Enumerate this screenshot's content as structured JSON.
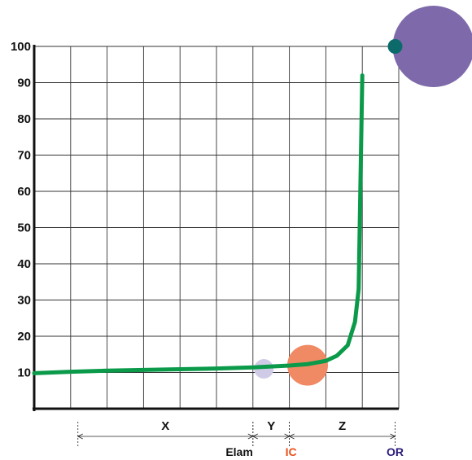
{
  "chart_data": {
    "type": "line",
    "title": "",
    "xlabel": "",
    "ylabel": "",
    "ylim": [
      0,
      100
    ],
    "yticks": [
      10,
      20,
      30,
      40,
      50,
      60,
      70,
      80,
      90,
      100
    ],
    "grid": true,
    "series": [
      {
        "color": "#0a9a4a",
        "x": [
          0,
          1,
          2,
          3,
          4,
          5,
          6,
          7,
          7.5,
          8,
          8.3,
          8.6,
          8.8,
          8.9,
          9.0
        ],
        "y": [
          9.8,
          10.2,
          10.5,
          10.7,
          10.9,
          11.1,
          11.4,
          11.9,
          12.3,
          13.2,
          14.6,
          17.5,
          24.0,
          33.0,
          92.0
        ]
      }
    ],
    "circles": [
      {
        "name": "small-lavender",
        "x": 6.3,
        "y": 11.0,
        "color": "#cfcbe6"
      },
      {
        "name": "salmon",
        "x": 7.5,
        "y": 12.0,
        "color": "#f08a64"
      },
      {
        "name": "teal-dot",
        "x": 9.9,
        "y": 100.0,
        "color": "#0d6a6a"
      },
      {
        "name": "purple",
        "x": 10.95,
        "y": 100.0,
        "color": "#7e6aaa"
      }
    ],
    "segments": [
      {
        "label": "X",
        "from": 1.2,
        "to": 6.0
      },
      {
        "label": "Y",
        "from": 6.0,
        "to": 7.0
      },
      {
        "label": "Z",
        "from": 7.0,
        "to": 9.9
      }
    ],
    "markers": [
      {
        "label": "Elam",
        "x": 6.0,
        "color": "#111111"
      },
      {
        "label": "IC",
        "x": 7.0,
        "color": "#e8501a"
      },
      {
        "label": "OR",
        "x": 9.9,
        "color": "#2a1a7a"
      }
    ]
  }
}
